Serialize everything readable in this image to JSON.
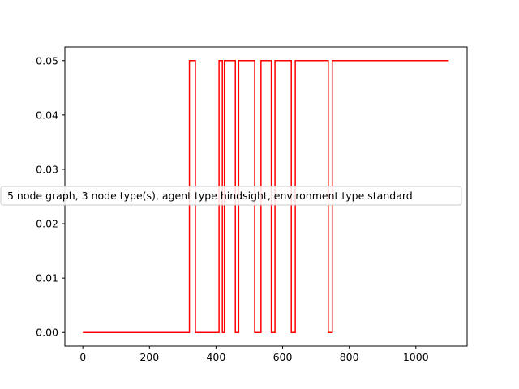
{
  "chart_data": {
    "type": "line",
    "title": "",
    "xlabel": "",
    "ylabel": "",
    "xlim": [
      -54,
      1154
    ],
    "ylim": [
      -0.0025,
      0.0525
    ],
    "xticks": [
      0,
      200,
      400,
      600,
      800,
      1000
    ],
    "yticks": [
      0.0,
      0.01,
      0.02,
      0.03,
      0.04,
      0.05
    ],
    "xtick_labels": [
      "0",
      "200",
      "400",
      "600",
      "800",
      "1000"
    ],
    "ytick_labels": [
      "0.00",
      "0.01",
      "0.02",
      "0.03",
      "0.04",
      "0.05"
    ],
    "grid": false,
    "legend": "center-left",
    "series": [
      {
        "name": "5 node graph, 3 node type(s), agent type hindsight, environment type standard",
        "color": "#ff0000",
        "step": true,
        "x": [
          0,
          320,
          320,
          338,
          338,
          409,
          409,
          419,
          419,
          425,
          425,
          458,
          458,
          468,
          468,
          516,
          516,
          535,
          535,
          566,
          566,
          577,
          577,
          626,
          626,
          638,
          638,
          737,
          737,
          749,
          749,
          1099
        ],
        "y": [
          0,
          0,
          0.05,
          0.05,
          0,
          0,
          0.05,
          0.05,
          0,
          0,
          0.05,
          0.05,
          0,
          0,
          0.05,
          0.05,
          0,
          0,
          0.05,
          0.05,
          0,
          0,
          0.05,
          0.05,
          0,
          0,
          0.05,
          0.05,
          0,
          0,
          0.05,
          0.05
        ]
      }
    ]
  }
}
